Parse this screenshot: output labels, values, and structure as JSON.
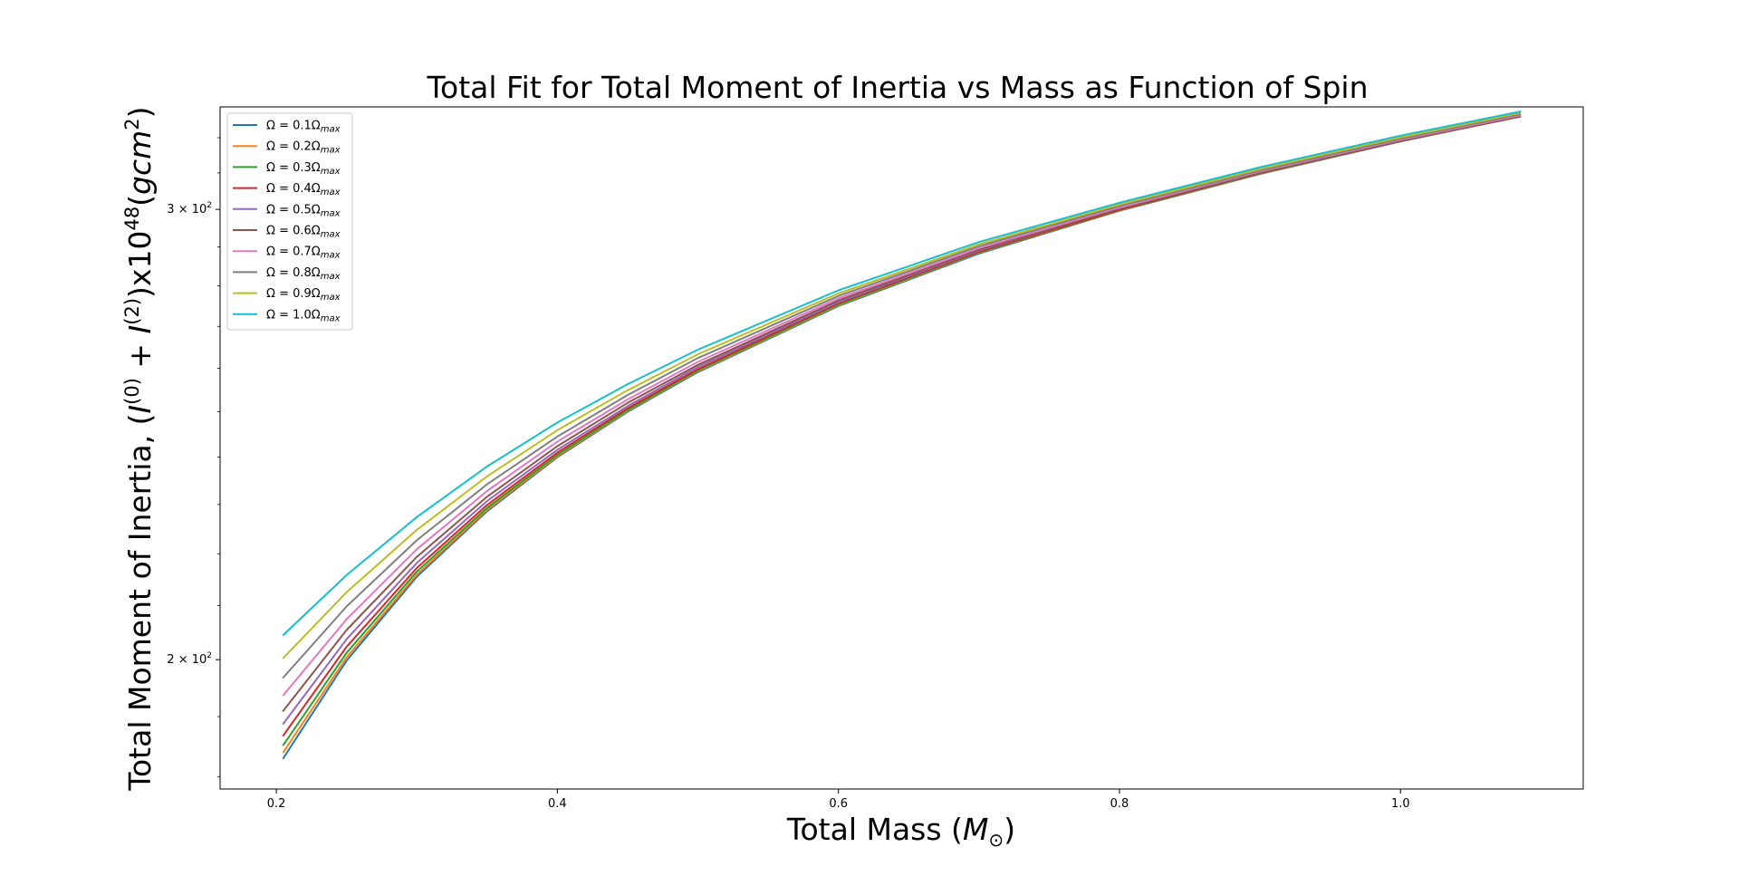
{
  "chart_data": {
    "type": "line",
    "title": "Total Fit for Total Moment of Inertia vs Mass as Function of Spin",
    "xlabel": "Total Mass",
    "xlabel_unit": "M",
    "xlabel_unit_sub": "⊙",
    "ylabel": "Total Moment of Inertia, ",
    "ylabel_math": "(I(0) + I(2))x1048(gcm2)",
    "xlim": [
      0.16,
      1.13
    ],
    "ylim": [
      178,
      329
    ],
    "yscale": "log",
    "x_ticks": [
      {
        "value": 0.2,
        "label": "0.2"
      },
      {
        "value": 0.4,
        "label": "0.4"
      },
      {
        "value": 0.6,
        "label": "0.6"
      },
      {
        "value": 0.8,
        "label": "0.8"
      },
      {
        "value": 1.0,
        "label": "1.0"
      }
    ],
    "y_ticks": [
      {
        "value": 200,
        "label_base": "2",
        "label_mid": " × 10",
        "label_exp": "2"
      },
      {
        "value": 300,
        "label_base": "3",
        "label_mid": " × 10",
        "label_exp": "2"
      }
    ],
    "grid": false,
    "legend_position": "upper-left",
    "x": [
      0.205,
      0.25,
      0.3,
      0.35,
      0.4,
      0.45,
      0.5,
      0.6,
      0.7,
      0.8,
      0.9,
      1.0,
      1.085
    ],
    "series": [
      {
        "name": "Ω = 0.1Ω",
        "name_sub": "max",
        "color": "#1f77b4",
        "values": [
          183.0,
          199.8,
          215.5,
          228.6,
          240.0,
          250.0,
          259.1,
          275.0,
          288.3,
          299.6,
          309.7,
          318.9,
          326.2
        ]
      },
      {
        "name": "Ω = 0.2Ω",
        "name_sub": "max",
        "color": "#ff7f0e",
        "values": [
          184.0,
          200.4,
          215.9,
          228.9,
          240.2,
          250.2,
          259.3,
          275.2,
          288.5,
          299.7,
          309.8,
          319.0,
          326.3
        ]
      },
      {
        "name": "Ω = 0.3Ω",
        "name_sub": "max",
        "color": "#2ca02c",
        "values": [
          185.2,
          201.2,
          216.5,
          229.3,
          240.5,
          250.4,
          259.5,
          275.4,
          288.6,
          299.8,
          309.9,
          319.1,
          326.4
        ]
      },
      {
        "name": "Ω = 0.4Ω",
        "name_sub": "max",
        "color": "#d62728",
        "values": [
          186.8,
          202.3,
          217.2,
          229.9,
          241.0,
          250.8,
          259.8,
          275.7,
          288.8,
          299.9,
          310.0,
          319.1,
          326.3
        ]
      },
      {
        "name": "Ω = 0.5Ω",
        "name_sub": "max",
        "color": "#9467bd",
        "values": [
          188.8,
          203.7,
          218.2,
          230.7,
          241.6,
          251.3,
          260.3,
          276.0,
          289.1,
          300.2,
          310.2,
          319.3,
          326.5
        ]
      },
      {
        "name": "Ω = 0.6Ω",
        "name_sub": "max",
        "color": "#8c564b",
        "values": [
          191.0,
          205.4,
          219.4,
          231.6,
          242.4,
          252.0,
          260.8,
          276.4,
          289.3,
          300.1,
          310.0,
          319.0,
          326.1
        ]
      },
      {
        "name": "Ω = 0.7Ω",
        "name_sub": "max",
        "color": "#e377c2",
        "values": [
          193.7,
          207.4,
          220.9,
          232.8,
          243.4,
          252.8,
          261.5,
          276.9,
          289.7,
          300.5,
          310.4,
          319.4,
          326.5
        ]
      },
      {
        "name": "Ω = 0.8Ω",
        "name_sub": "max",
        "color": "#7f7f7f",
        "values": [
          196.8,
          209.8,
          222.7,
          234.2,
          244.5,
          253.8,
          262.4,
          277.5,
          290.2,
          300.9,
          310.7,
          319.7,
          326.8
        ]
      },
      {
        "name": "Ω = 0.9Ω",
        "name_sub": "max",
        "color": "#bcbd22",
        "values": [
          200.3,
          212.5,
          224.8,
          235.9,
          245.9,
          254.9,
          263.3,
          278.1,
          290.7,
          301.3,
          311.1,
          320.1,
          327.2
        ]
      },
      {
        "name": "Ω = 1.0Ω",
        "name_sub": "max",
        "color": "#17becf",
        "values": [
          204.5,
          215.8,
          227.4,
          238.0,
          247.6,
          256.3,
          264.4,
          278.9,
          291.3,
          301.8,
          311.6,
          320.6,
          327.6
        ]
      }
    ]
  }
}
